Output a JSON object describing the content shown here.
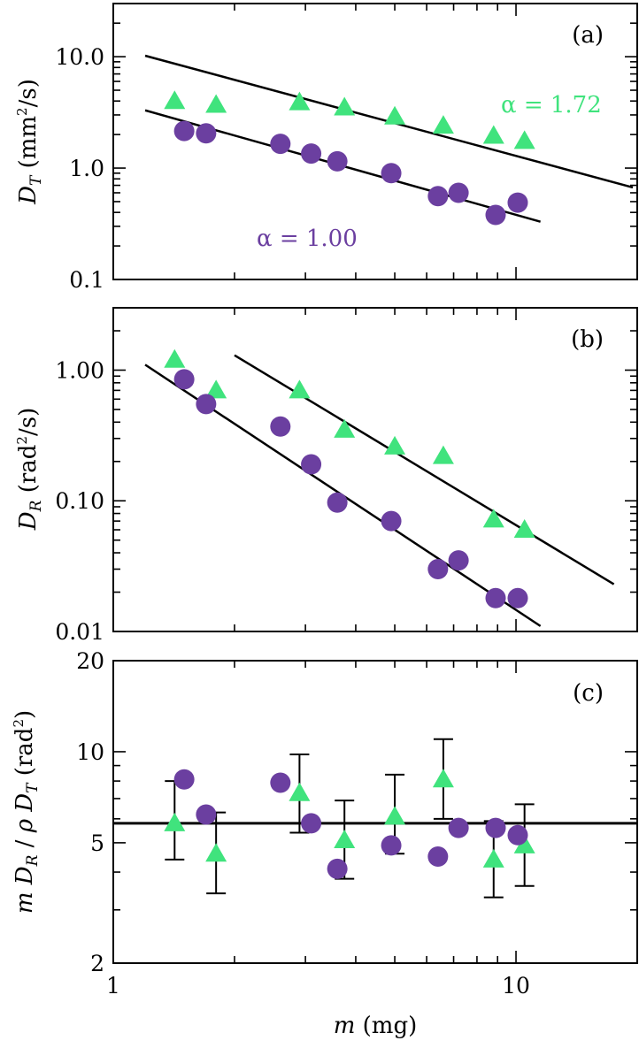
{
  "colors": {
    "circle": "#6b3fa0",
    "triangle": "#40e37d",
    "line": "#000000"
  },
  "chart_data": [
    {
      "panel": "(a)",
      "type": "scatter",
      "scale": "log-log",
      "xlim": [
        1,
        20
      ],
      "ylim": [
        0.1,
        30
      ],
      "ylabel": "D_T (mm²/s)",
      "ylabel_main": "D",
      "ylabel_sub": "T",
      "ylabel_rest": " (mm",
      "ylabel_sup": "2",
      "ylabel_end": "/s)",
      "yticks": [
        "0.1",
        "1.0",
        "10.0"
      ],
      "annotations": [
        {
          "text": "α = 1.72",
          "series": "triangle"
        },
        {
          "text": "α = 1.00",
          "series": "circle"
        }
      ],
      "series": [
        {
          "marker": "triangle",
          "x": [
            1.42,
            1.8,
            2.9,
            3.75,
            5.0,
            6.6,
            8.8,
            10.5
          ],
          "y": [
            4.0,
            3.7,
            3.9,
            3.5,
            2.9,
            2.4,
            1.95,
            1.75
          ]
        },
        {
          "marker": "circle",
          "x": [
            1.5,
            1.7,
            2.6,
            3.1,
            3.6,
            4.9,
            6.4,
            7.2,
            8.9,
            10.1
          ],
          "y": [
            2.15,
            2.05,
            1.65,
            1.35,
            1.15,
            0.9,
            0.56,
            0.6,
            0.38,
            0.49
          ]
        }
      ],
      "fits": [
        {
          "x": [
            1.2,
            19.5
          ],
          "y": [
            10.2,
            0.67
          ]
        },
        {
          "x": [
            1.2,
            11.5
          ],
          "y": [
            3.3,
            0.33
          ]
        }
      ]
    },
    {
      "panel": "(b)",
      "type": "scatter",
      "scale": "log-log",
      "xlim": [
        1,
        20
      ],
      "ylim": [
        0.01,
        3
      ],
      "ylabel": "D_R (rad²/s)",
      "ylabel_main": "D",
      "ylabel_sub": "R",
      "ylabel_rest": " (rad",
      "ylabel_sup": "2",
      "ylabel_end": "/s)",
      "yticks": [
        "0.01",
        "0.10",
        "1.00"
      ],
      "series": [
        {
          "marker": "triangle",
          "x": [
            1.42,
            1.8,
            2.9,
            3.75,
            5.0,
            6.6,
            8.8,
            10.5
          ],
          "y": [
            1.2,
            0.7,
            0.7,
            0.35,
            0.26,
            0.22,
            0.072,
            0.06
          ]
        },
        {
          "marker": "circle",
          "x": [
            1.5,
            1.7,
            2.6,
            3.1,
            3.6,
            4.9,
            6.4,
            7.2,
            8.9,
            10.1
          ],
          "y": [
            0.85,
            0.55,
            0.37,
            0.19,
            0.097,
            0.07,
            0.03,
            0.035,
            0.018,
            0.018
          ]
        }
      ],
      "fits": [
        {
          "x": [
            2.0,
            17.5
          ],
          "y": [
            1.3,
            0.023
          ]
        },
        {
          "x": [
            1.2,
            11.5
          ],
          "y": [
            1.1,
            0.011
          ]
        }
      ]
    },
    {
      "panel": "(c)",
      "type": "scatter",
      "scale": "log-log",
      "xlim": [
        1,
        20
      ],
      "ylim": [
        2,
        20
      ],
      "ylabel": "m D_R / ρ D_T (rad²)",
      "xlabel": "m (mg)",
      "yticks": [
        "2",
        "5",
        "10",
        "20"
      ],
      "xticks": [
        "1",
        "10"
      ],
      "hline": 5.8,
      "series": [
        {
          "marker": "triangle",
          "x": [
            1.42,
            1.8,
            2.9,
            3.75,
            5.0,
            6.6,
            8.8,
            10.5
          ],
          "y": [
            5.8,
            4.6,
            7.3,
            5.1,
            6.1,
            8.1,
            4.4,
            4.9
          ],
          "yerr_low": [
            4.4,
            3.4,
            5.4,
            3.8,
            4.6,
            6.0,
            3.3,
            3.6
          ],
          "yerr_high": [
            8.0,
            6.3,
            9.8,
            6.9,
            8.4,
            11.0,
            5.9,
            6.7
          ]
        },
        {
          "marker": "circle",
          "x": [
            1.5,
            1.7,
            2.6,
            3.1,
            3.6,
            4.9,
            6.4,
            7.2,
            8.9,
            10.1
          ],
          "y": [
            8.1,
            6.2,
            7.9,
            5.8,
            4.1,
            4.9,
            4.5,
            5.6,
            5.6,
            5.3
          ]
        }
      ]
    }
  ]
}
